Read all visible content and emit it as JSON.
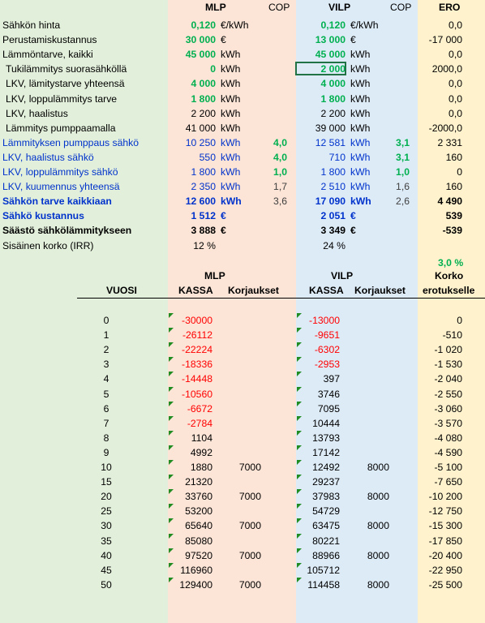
{
  "headers": {
    "mlp": "MLP",
    "cop1": "COP",
    "vilp": "VILP",
    "cop2": "COP",
    "ero": "ERO"
  },
  "rows": [
    {
      "label": "Sähkön hinta",
      "label_style": "",
      "mlp": "0,120",
      "mlp_style": "green",
      "mlp_unit": "€/kWh",
      "mlp_cop": "",
      "vilp": "0,120",
      "vilp_style": "green",
      "vilp_unit": "€/kWh",
      "vilp_cop": "",
      "ero": "0,0",
      "ero_style": "",
      "unit_style": ""
    },
    {
      "label": "Perustamiskustannus",
      "label_style": "",
      "mlp": "30 000",
      "mlp_style": "green",
      "mlp_unit": "€",
      "mlp_cop": "",
      "vilp": "13 000",
      "vilp_style": "green",
      "vilp_unit": "€",
      "vilp_cop": "",
      "ero": "-17 000",
      "ero_style": "",
      "unit_style": ""
    },
    {
      "label": "Lämmöntarve, kaikki",
      "label_style": "",
      "mlp": "45 000",
      "mlp_style": "green",
      "mlp_unit": "kWh",
      "mlp_cop": "",
      "vilp": "45 000",
      "vilp_style": "green",
      "vilp_unit": "kWh",
      "vilp_cop": "",
      "ero": "0,0",
      "ero_style": "",
      "unit_style": ""
    },
    {
      "label": "Tukilämmitys suorasähköllä",
      "label_style": "",
      "mlp": "0",
      "mlp_style": "green",
      "mlp_unit": "kWh",
      "mlp_cop": "",
      "vilp": "2 000",
      "vilp_style": "green",
      "vilp_unit": "kWh",
      "vilp_cop": "",
      "ero": "2000,0",
      "ero_style": "",
      "unit_style": "",
      "indent": true
    },
    {
      "label": "LKV, lämitystarve yhteensä",
      "label_style": "",
      "mlp": "4 000",
      "mlp_style": "green",
      "mlp_unit": "kWh",
      "mlp_cop": "",
      "vilp": "4 000",
      "vilp_style": "green",
      "vilp_unit": "kWh",
      "vilp_cop": "",
      "ero": "0,0",
      "ero_style": "",
      "unit_style": "",
      "indent": true
    },
    {
      "label": "LKV, loppulämmitys tarve",
      "label_style": "",
      "mlp": "1 800",
      "mlp_style": "green",
      "mlp_unit": "kWh",
      "mlp_cop": "",
      "vilp": "1 800",
      "vilp_style": "green",
      "vilp_unit": "kWh",
      "vilp_cop": "",
      "ero": "0,0",
      "ero_style": "",
      "unit_style": "",
      "indent": true
    },
    {
      "label": "LKV, haalistus",
      "label_style": "",
      "mlp": "2 200",
      "mlp_style": "",
      "mlp_unit": "kWh",
      "mlp_cop": "",
      "vilp": "2 200",
      "vilp_style": "",
      "vilp_unit": "kWh",
      "vilp_cop": "",
      "ero": "0,0",
      "ero_style": "",
      "unit_style": "",
      "indent": true
    },
    {
      "label": "Lämmitys pumppaamalla",
      "label_style": "",
      "mlp": "41 000",
      "mlp_style": "",
      "mlp_unit": "kWh",
      "mlp_cop": "",
      "vilp": "39 000",
      "vilp_style": "",
      "vilp_unit": "kWh",
      "vilp_cop": "",
      "ero": "-2000,0",
      "ero_style": "",
      "unit_style": "",
      "indent": true
    },
    {
      "label": "Lämmityksen pumppaus sähkö",
      "label_style": "blue",
      "mlp": "10 250",
      "mlp_style": "blue",
      "mlp_unit": "kWh",
      "mlp_cop": "4,0",
      "mlp_cop_style": "green",
      "vilp": "12 581",
      "vilp_style": "blue",
      "vilp_unit": "kWh",
      "vilp_cop": "3,1",
      "vilp_cop_style": "green",
      "ero": "2 331",
      "ero_style": "",
      "unit_style": "blue"
    },
    {
      "label": "LKV, haalistus sähkö",
      "label_style": "blue",
      "mlp": "550",
      "mlp_style": "blue",
      "mlp_unit": "kWh",
      "mlp_cop": "4,0",
      "mlp_cop_style": "green",
      "vilp": "710",
      "vilp_style": "blue",
      "vilp_unit": "kWh",
      "vilp_cop": "3,1",
      "vilp_cop_style": "green",
      "ero": "160",
      "ero_style": "",
      "unit_style": "blue"
    },
    {
      "label": "LKV, loppulämmitys sähkö",
      "label_style": "blue",
      "mlp": "1 800",
      "mlp_style": "blue",
      "mlp_unit": "kWh",
      "mlp_cop": "1,0",
      "mlp_cop_style": "green",
      "vilp": "1 800",
      "vilp_style": "blue",
      "vilp_unit": "kWh",
      "vilp_cop": "1,0",
      "vilp_cop_style": "green",
      "ero": "0",
      "ero_style": "",
      "unit_style": "blue"
    },
    {
      "label": "LKV, kuumennus yhteensä",
      "label_style": "blue",
      "mlp": "2 350",
      "mlp_style": "blue",
      "mlp_unit": "kWh",
      "mlp_cop": "1,7",
      "mlp_cop_style": "gray",
      "vilp": "2 510",
      "vilp_style": "blue",
      "vilp_unit": "kWh",
      "vilp_cop": "1,6",
      "vilp_cop_style": "gray",
      "ero": "160",
      "ero_style": "",
      "unit_style": "blue"
    },
    {
      "label": "Sähkön tarve kaikkiaan",
      "label_style": "dblue",
      "mlp": "12 600",
      "mlp_style": "dblue",
      "mlp_unit": "kWh",
      "mlp_cop": "3,6",
      "mlp_cop_style": "gray",
      "vilp": "17 090",
      "vilp_style": "dblue",
      "vilp_unit": "kWh",
      "vilp_cop": "2,6",
      "vilp_cop_style": "gray",
      "ero": "4 490",
      "ero_style": "b",
      "unit_style": "dblue"
    },
    {
      "label": "Sähkö kustannus",
      "label_style": "dblue",
      "mlp": "1 512",
      "mlp_style": "dblue",
      "mlp_unit": "€",
      "mlp_cop": "",
      "vilp": "2 051",
      "vilp_style": "dblue",
      "vilp_unit": "€",
      "vilp_cop": "",
      "ero": "539",
      "ero_style": "b",
      "unit_style": "dblue"
    },
    {
      "label": "Säästö sähkölämmitykseen",
      "label_style": "b",
      "mlp": "3 888",
      "mlp_style": "b",
      "mlp_unit": "€",
      "mlp_cop": "",
      "vilp": "3 349",
      "vilp_style": "b",
      "vilp_unit": "€",
      "vilp_cop": "",
      "ero": "-539",
      "ero_style": "b",
      "unit_style": "b"
    },
    {
      "label": "Sisäinen korko (IRR)",
      "label_style": "",
      "mlp": "12 %",
      "mlp_style": "",
      "mlp_unit": "",
      "mlp_cop": "",
      "vilp": "24 %",
      "vilp_style": "",
      "vilp_unit": "",
      "vilp_cop": "",
      "ero": "",
      "ero_style": "",
      "unit_style": ""
    }
  ],
  "ero_rate": "3,0 %",
  "table_headers": {
    "mlp": "MLP",
    "vilp": "VILP",
    "korko": "Korko",
    "vuosi": "VUOSI",
    "mlp_kassa": "KASSA",
    "mlp_korjaukset": "Korjaukset",
    "vilp_kassa": "KASSA",
    "vilp_korjaukset": "Korjaukset",
    "erotukselle": "erotukselle"
  },
  "years": [
    {
      "vuosi": "0",
      "mlp_kassa": "-30000",
      "mlp_korj": "",
      "vilp_kassa": "-13000",
      "vilp_korj": "",
      "ero": "0"
    },
    {
      "vuosi": "1",
      "mlp_kassa": "-26112",
      "mlp_korj": "",
      "vilp_kassa": "-9651",
      "vilp_korj": "",
      "ero": "-510"
    },
    {
      "vuosi": "2",
      "mlp_kassa": "-22224",
      "mlp_korj": "",
      "vilp_kassa": "-6302",
      "vilp_korj": "",
      "ero": "-1 020"
    },
    {
      "vuosi": "3",
      "mlp_kassa": "-18336",
      "mlp_korj": "",
      "vilp_kassa": "-2953",
      "vilp_korj": "",
      "ero": "-1 530"
    },
    {
      "vuosi": "4",
      "mlp_kassa": "-14448",
      "mlp_korj": "",
      "vilp_kassa": "397",
      "vilp_korj": "",
      "ero": "-2 040"
    },
    {
      "vuosi": "5",
      "mlp_kassa": "-10560",
      "mlp_korj": "",
      "vilp_kassa": "3746",
      "vilp_korj": "",
      "ero": "-2 550"
    },
    {
      "vuosi": "6",
      "mlp_kassa": "-6672",
      "mlp_korj": "",
      "vilp_kassa": "7095",
      "vilp_korj": "",
      "ero": "-3 060"
    },
    {
      "vuosi": "7",
      "mlp_kassa": "-2784",
      "mlp_korj": "",
      "vilp_kassa": "10444",
      "vilp_korj": "",
      "ero": "-3 570"
    },
    {
      "vuosi": "8",
      "mlp_kassa": "1104",
      "mlp_korj": "",
      "vilp_kassa": "13793",
      "vilp_korj": "",
      "ero": "-4 080"
    },
    {
      "vuosi": "9",
      "mlp_kassa": "4992",
      "mlp_korj": "",
      "vilp_kassa": "17142",
      "vilp_korj": "",
      "ero": "-4 590"
    },
    {
      "vuosi": "10",
      "mlp_kassa": "1880",
      "mlp_korj": "7000",
      "vilp_kassa": "12492",
      "vilp_korj": "8000",
      "ero": "-5 100"
    },
    {
      "vuosi": "15",
      "mlp_kassa": "21320",
      "mlp_korj": "",
      "vilp_kassa": "29237",
      "vilp_korj": "",
      "ero": "-7 650"
    },
    {
      "vuosi": "20",
      "mlp_kassa": "33760",
      "mlp_korj": "7000",
      "vilp_kassa": "37983",
      "vilp_korj": "8000",
      "ero": "-10 200"
    },
    {
      "vuosi": "25",
      "mlp_kassa": "53200",
      "mlp_korj": "",
      "vilp_kassa": "54729",
      "vilp_korj": "",
      "ero": "-12 750"
    },
    {
      "vuosi": "30",
      "mlp_kassa": "65640",
      "mlp_korj": "7000",
      "vilp_kassa": "63475",
      "vilp_korj": "8000",
      "ero": "-15 300"
    },
    {
      "vuosi": "35",
      "mlp_kassa": "85080",
      "mlp_korj": "",
      "vilp_kassa": "80221",
      "vilp_korj": "",
      "ero": "-17 850"
    },
    {
      "vuosi": "40",
      "mlp_kassa": "97520",
      "mlp_korj": "7000",
      "vilp_kassa": "88966",
      "vilp_korj": "8000",
      "ero": "-20 400"
    },
    {
      "vuosi": "45",
      "mlp_kassa": "116960",
      "mlp_korj": "",
      "vilp_kassa": "105712",
      "vilp_korj": "",
      "ero": "-22 950"
    },
    {
      "vuosi": "50",
      "mlp_kassa": "129400",
      "mlp_korj": "7000",
      "vilp_kassa": "114458",
      "vilp_korj": "8000",
      "ero": "-25 500"
    }
  ],
  "colors": {
    "green": "#00b050",
    "blue": "#0033cc",
    "red": "#ff0000",
    "label_bg": "#e2efda",
    "mlp_bg": "#fce4d6",
    "vilp_bg": "#ddebf7",
    "ero_bg": "#fff2cc"
  }
}
